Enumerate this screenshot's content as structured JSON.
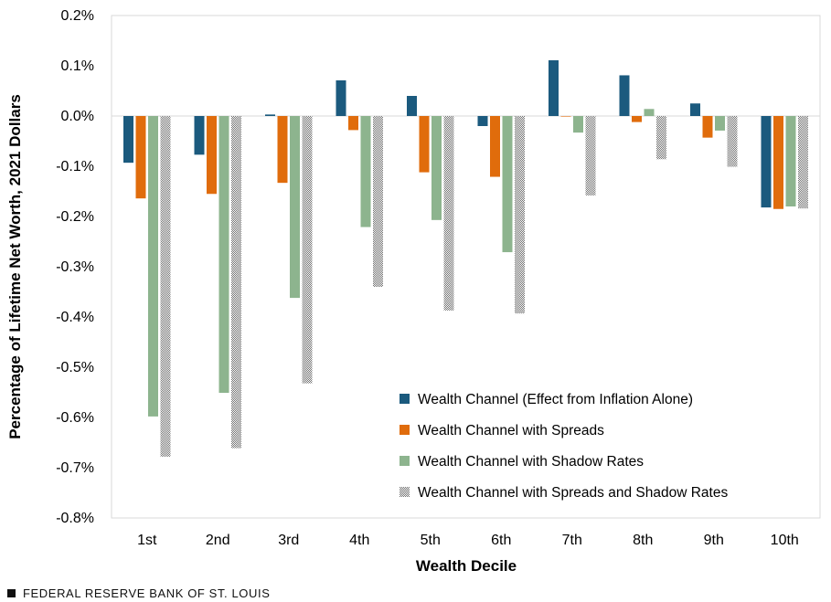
{
  "chart_data": {
    "type": "bar",
    "title": "",
    "xlabel": "Wealth Decile",
    "ylabel": "Percentage of Lifetime Net Worth, 2021 Dollars",
    "ylim": [
      -0.8,
      0.2
    ],
    "yticks": [
      0.2,
      0.1,
      0.0,
      -0.1,
      -0.2,
      -0.3,
      -0.4,
      -0.5,
      -0.6,
      -0.7,
      -0.8
    ],
    "ytick_labels": [
      "0.2%",
      "0.1%",
      "0.0%",
      "-0.1%",
      "-0.2%",
      "-0.3%",
      "-0.4%",
      "-0.5%",
      "-0.6%",
      "-0.7%",
      "-0.8%"
    ],
    "categories": [
      "1st",
      "2nd",
      "3rd",
      "4th",
      "5th",
      "6th",
      "7th",
      "8th",
      "9th",
      "10th"
    ],
    "grid": false,
    "legend_position": "bottom-right",
    "series": [
      {
        "name": "Wealth Channel (Effect from Inflation Alone)",
        "color": "#1b5a7e",
        "pattern": "solid",
        "values": [
          -0.093,
          -0.077,
          0.003,
          0.071,
          0.04,
          -0.02,
          0.111,
          0.081,
          0.025,
          -0.182
        ]
      },
      {
        "name": "Wealth Channel with Spreads",
        "color": "#e06c0c",
        "pattern": "solid",
        "values": [
          -0.164,
          -0.155,
          -0.133,
          -0.028,
          -0.112,
          -0.121,
          0.0,
          -0.012,
          -0.043,
          -0.185
        ]
      },
      {
        "name": "Wealth Channel with Shadow Rates",
        "color": "#8db48e",
        "pattern": "solid",
        "values": [
          -0.598,
          -0.551,
          -0.362,
          -0.221,
          -0.207,
          -0.271,
          -0.033,
          0.014,
          -0.029,
          -0.18
        ]
      },
      {
        "name": "Wealth Channel with Spreads and Shadow Rates",
        "color": "#8c8c8c",
        "pattern": "checker",
        "values": [
          -0.678,
          -0.661,
          -0.532,
          -0.34,
          -0.387,
          -0.393,
          -0.158,
          -0.086,
          -0.101,
          -0.184
        ]
      }
    ]
  },
  "footer": {
    "source": "FEDERAL RESERVE BANK OF ST. LOUIS"
  }
}
